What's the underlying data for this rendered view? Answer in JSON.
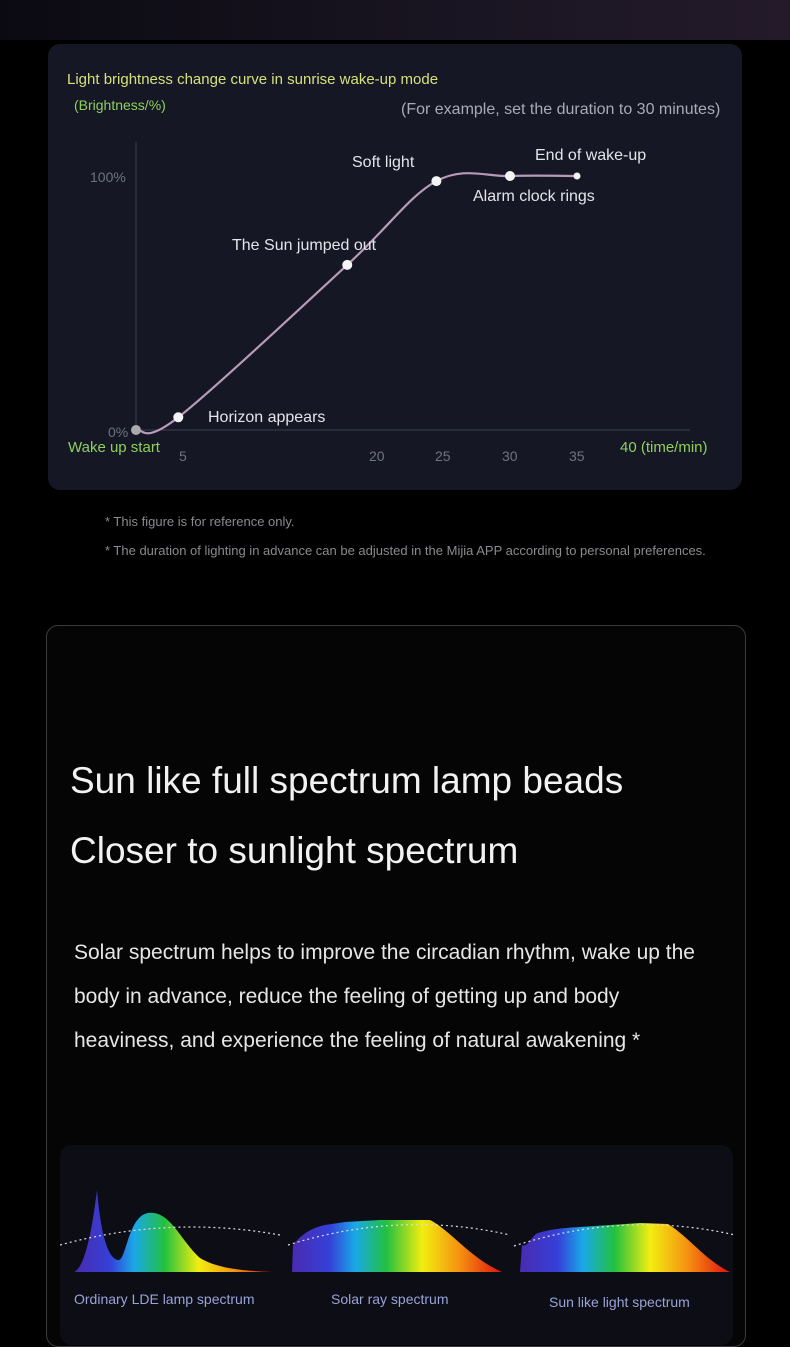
{
  "wake_chart": {
    "title": "Light brightness change curve in sunrise wake-up mode",
    "y_label": "(Brightness/%)",
    "example_note": "(For example, set the duration to 30 minutes)",
    "y_ticks": [
      "100%",
      "0%"
    ],
    "x_start_label": "Wake up start",
    "x_ticks": [
      "5",
      "20",
      "25",
      "30",
      "35"
    ],
    "x_end_label": "40 (time/min)",
    "annotations": [
      "Horizon appears",
      "The Sun jumped out",
      "Soft light",
      "Alarm clock rings",
      "End of wake-up"
    ],
    "curve_color": "#b79ab8"
  },
  "chart_data": {
    "type": "line",
    "title": "Light brightness change curve in sunrise wake-up mode",
    "ylabel": "(Brightness/%)",
    "xlabel": "40 (time/min)",
    "ylim": [
      0,
      100
    ],
    "points": [
      {
        "x": 0,
        "y": 0,
        "label": "Wake up start"
      },
      {
        "x": 4.5,
        "y": 5,
        "label": "Horizon appears"
      },
      {
        "x": 17.7,
        "y": 65,
        "label": "The Sun jumped out"
      },
      {
        "x": 24.5,
        "y": 98,
        "label": "Soft light"
      },
      {
        "x": 30,
        "y": 100,
        "label": "Alarm clock rings"
      },
      {
        "x": 35,
        "y": 100,
        "label": "End of wake-up"
      }
    ]
  },
  "notes": [
    "* This figure is for reference only.",
    "* The duration of lighting in advance can be adjusted in the Mijia APP according to personal preferences."
  ],
  "spectrum_section": {
    "heading1": "Sun like full spectrum lamp beads",
    "heading2": "Closer to sunlight spectrum",
    "body": "Solar spectrum helps to improve the circadian rhythm, wake up the body in advance, reduce the feeling of getting up and body heaviness, and experience the feeling of natural awakening *",
    "spectra": [
      "Ordinary LDE lamp spectrum",
      "Solar ray spectrum",
      "Sun like light spectrum"
    ]
  }
}
